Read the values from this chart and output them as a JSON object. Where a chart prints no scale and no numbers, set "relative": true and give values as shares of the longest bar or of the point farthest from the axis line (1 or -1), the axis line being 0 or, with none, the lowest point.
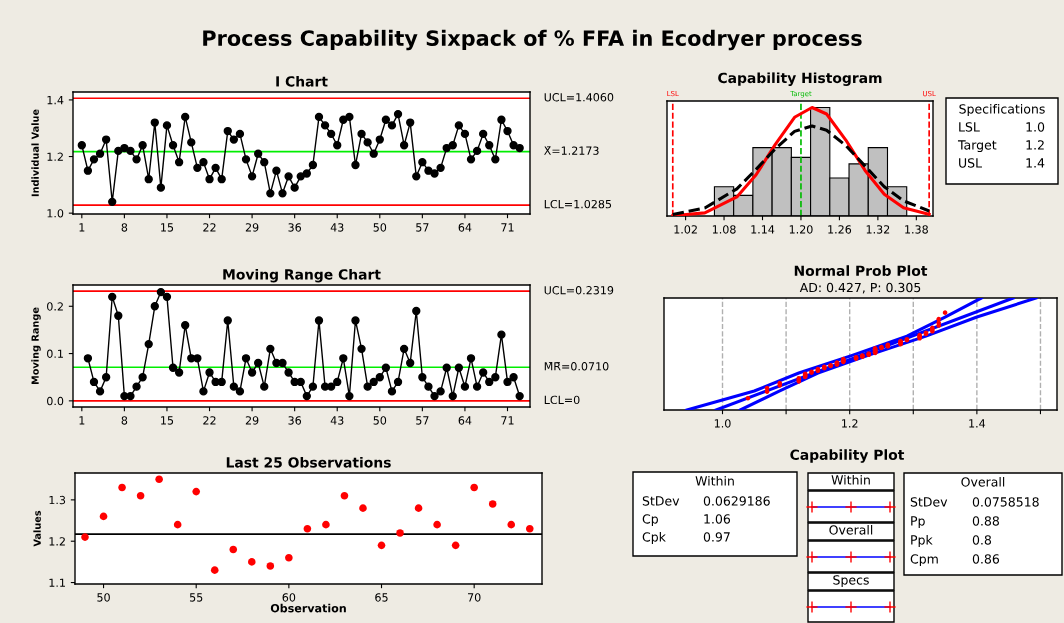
{
  "chart_data": [
    {
      "type": "other",
      "title": "Process Capability Sixpack of % FFA in Ecodryer process"
    },
    {
      "type": "line",
      "title": "I Chart",
      "ylabel": "Individual Value",
      "marker": "circle",
      "grid": false,
      "x": [
        1,
        2,
        3,
        4,
        5,
        6,
        7,
        8,
        9,
        10,
        11,
        12,
        13,
        14,
        15,
        16,
        17,
        18,
        19,
        20,
        21,
        22,
        23,
        24,
        25,
        26,
        27,
        28,
        29,
        30,
        31,
        32,
        33,
        34,
        35,
        36,
        37,
        38,
        39,
        40,
        41,
        42,
        43,
        44,
        45,
        46,
        47,
        48,
        49,
        50,
        51,
        52,
        53,
        54,
        55,
        56,
        57,
        58,
        59,
        60,
        61,
        62,
        63,
        64,
        65,
        66,
        67,
        68,
        69,
        70,
        71,
        72,
        73
      ],
      "series": [
        {
          "color": "#000000",
          "values": [
            1.24,
            1.15,
            1.19,
            1.21,
            1.26,
            1.04,
            1.22,
            1.23,
            1.22,
            1.19,
            1.24,
            1.12,
            1.32,
            1.09,
            1.31,
            1.24,
            1.18,
            1.34,
            1.25,
            1.16,
            1.18,
            1.12,
            1.16,
            1.12,
            1.29,
            1.26,
            1.28,
            1.19,
            1.13,
            1.21,
            1.18,
            1.07,
            1.15,
            1.07,
            1.13,
            1.09,
            1.13,
            1.14,
            1.17,
            1.34,
            1.31,
            1.28,
            1.24,
            1.33,
            1.34,
            1.17,
            1.28,
            1.25,
            1.21,
            1.26,
            1.33,
            1.31,
            1.35,
            1.24,
            1.32,
            1.13,
            1.18,
            1.15,
            1.14,
            1.16,
            1.23,
            1.24,
            1.31,
            1.28,
            1.19,
            1.22,
            1.28,
            1.24,
            1.19,
            1.33,
            1.29,
            1.24,
            1.23
          ]
        }
      ],
      "xlim": [
        -0.45,
        74.7
      ],
      "xticks": [
        1,
        8,
        15,
        22,
        29,
        36,
        43,
        50,
        57,
        64,
        71
      ],
      "ylim": [
        0.997,
        1.428
      ],
      "yticks": [
        {
          "value": 1.0,
          "label": "1.0"
        },
        1.2,
        1.4
      ],
      "ref_lines": [
        {
          "axis": "y",
          "value": 1.406,
          "label": "UCL=1.4060",
          "color": "#ff0000"
        },
        {
          "axis": "y",
          "value": 1.2173,
          "label": "X̄=1.2173",
          "color": "#00ee00"
        },
        {
          "axis": "y",
          "value": 1.0285,
          "label": "LCL=1.0285",
          "color": "#ff0000"
        }
      ]
    },
    {
      "type": "line",
      "title": "Moving Range Chart",
      "ylabel": "Moving Range",
      "marker": "circle",
      "grid": false,
      "x": [
        2,
        3,
        4,
        5,
        6,
        7,
        8,
        9,
        10,
        11,
        12,
        13,
        14,
        15,
        16,
        17,
        18,
        19,
        20,
        21,
        22,
        23,
        24,
        25,
        26,
        27,
        28,
        29,
        30,
        31,
        32,
        33,
        34,
        35,
        36,
        37,
        38,
        39,
        40,
        41,
        42,
        43,
        44,
        45,
        46,
        47,
        48,
        49,
        50,
        51,
        52,
        53,
        54,
        55,
        56,
        57,
        58,
        59,
        60,
        61,
        62,
        63,
        64,
        65,
        66,
        67,
        68,
        69,
        70,
        71,
        72,
        73
      ],
      "series": [
        {
          "color": "#000000",
          "values": [
            0.09,
            0.04,
            0.02,
            0.05,
            0.22,
            0.18,
            0.01,
            0.01,
            0.03,
            0.05,
            0.12,
            0.2,
            0.23,
            0.22,
            0.07,
            0.06,
            0.16,
            0.09,
            0.09,
            0.02,
            0.06,
            0.04,
            0.04,
            0.17,
            0.03,
            0.02,
            0.09,
            0.06,
            0.08,
            0.03,
            0.11,
            0.08,
            0.08,
            0.06,
            0.04,
            0.04,
            0.01,
            0.03,
            0.17,
            0.03,
            0.03,
            0.04,
            0.09,
            0.01,
            0.17,
            0.11,
            0.03,
            0.04,
            0.05,
            0.07,
            0.02,
            0.04,
            0.11,
            0.08,
            0.19,
            0.05,
            0.03,
            0.01,
            0.02,
            0.07,
            0.01,
            0.07,
            0.03,
            0.09,
            0.03,
            0.06,
            0.04,
            0.05,
            0.14,
            0.04,
            0.05,
            0.01
          ]
        }
      ],
      "xlim": [
        -0.45,
        74.7
      ],
      "xticks": [
        1,
        8,
        15,
        22,
        29,
        36,
        43,
        50,
        57,
        64,
        71
      ],
      "ylim": [
        -0.013,
        0.245
      ],
      "yticks": [
        {
          "value": 0,
          "label": "0.0"
        },
        0.1,
        0.2
      ],
      "ref_lines": [
        {
          "axis": "y",
          "value": 0.2319,
          "label": "UCL=0.2319",
          "color": "#ff0000"
        },
        {
          "axis": "y",
          "value": 0.071,
          "label": "M̄R̄=0.0710",
          "color": "#00ee00"
        },
        {
          "axis": "y",
          "value": 0,
          "label": "LCL=0",
          "color": "#ff0000"
        }
      ]
    },
    {
      "type": "histogram",
      "title": "Capability Histogram",
      "relative": true,
      "tick_labels": "x",
      "grid": false,
      "bins": [
        1.065,
        1.095,
        1.125,
        1.155,
        1.185,
        1.215,
        1.245,
        1.275,
        1.305,
        1.335,
        1.365
      ],
      "values": [
        0.27,
        0.19,
        0.63,
        0.63,
        0.54,
        1,
        0.35,
        0.48,
        0.63,
        0.27
      ],
      "color": "#c0c0c0",
      "series": [
        {
          "type": "line",
          "color": "#ff0000",
          "line_style": "solid",
          "x": [
            1.0,
            1.05,
            1.1,
            1.13,
            1.16,
            1.19,
            1.2173,
            1.24,
            1.27,
            1.3,
            1.33,
            1.36,
            1.4
          ],
          "values": [
            0.003,
            0.029,
            0.176,
            0.38,
            0.66,
            0.91,
            1,
            0.94,
            0.7,
            0.42,
            0.2,
            0.076,
            0.015
          ]
        },
        {
          "type": "line",
          "color": "#000000",
          "line_style": "dashed",
          "x": [
            1.0,
            1.05,
            1.1,
            1.13,
            1.16,
            1.19,
            1.2173,
            1.24,
            1.27,
            1.3,
            1.33,
            1.36,
            1.4
          ],
          "values": [
            0.014,
            0.074,
            0.25,
            0.43,
            0.62,
            0.78,
            0.83,
            0.79,
            0.65,
            0.46,
            0.27,
            0.14,
            0.046
          ]
        }
      ],
      "xlim": [
        0.991,
        1.406
      ],
      "xticks": [
        1.02,
        1.08,
        1.14,
        {
          "value": 1.2,
          "label": "1.20"
        },
        1.26,
        1.32,
        1.38
      ],
      "ref_lines": [
        {
          "axis": "x",
          "value": 1.0,
          "label": "LSL",
          "color": "#ff0000",
          "line_style": "dashed"
        },
        {
          "axis": "x",
          "value": 1.2,
          "label": "Target",
          "color": "#00bb00",
          "line_style": "dashed"
        },
        {
          "axis": "x",
          "value": 1.4,
          "label": "USL",
          "color": "#ff0000",
          "line_style": "dashed"
        }
      ],
      "annotations": [
        "Specifications",
        "LSL",
        "1.0",
        "Target",
        "1.2",
        "USL",
        "1.4"
      ]
    },
    {
      "type": "scatter",
      "title": "Normal Prob Plot",
      "subtitle": "AD: 0.427, P: 0.305",
      "relative": true,
      "tick_labels": "x",
      "grid": "x",
      "series": [
        {
          "type": "scatter",
          "color": "#ff0000",
          "marker": "circle",
          "x": [
            1.04,
            1.07,
            1.07,
            1.09,
            1.09,
            1.12,
            1.12,
            1.12,
            1.13,
            1.13,
            1.13,
            1.13,
            1.14,
            1.14,
            1.15,
            1.15,
            1.15,
            1.16,
            1.16,
            1.16,
            1.17,
            1.17,
            1.18,
            1.18,
            1.18,
            1.18,
            1.19,
            1.19,
            1.19,
            1.19,
            1.19,
            1.21,
            1.21,
            1.21,
            1.22,
            1.22,
            1.22,
            1.23,
            1.23,
            1.23,
            1.24,
            1.24,
            1.24,
            1.24,
            1.24,
            1.24,
            1.24,
            1.24,
            1.25,
            1.25,
            1.26,
            1.26,
            1.26,
            1.28,
            1.28,
            1.28,
            1.28,
            1.28,
            1.29,
            1.29,
            1.31,
            1.31,
            1.31,
            1.31,
            1.32,
            1.32,
            1.33,
            1.33,
            1.33,
            1.34,
            1.34,
            1.34,
            1.35
          ],
          "values": [
            0.105,
            0.163,
            0.196,
            0.22,
            0.24,
            0.256,
            0.271,
            0.284,
            0.295,
            0.305,
            0.315,
            0.324,
            0.334,
            0.342,
            0.35,
            0.359,
            0.365,
            0.373,
            0.38,
            0.386,
            0.393,
            0.399,
            0.406,
            0.412,
            0.419,
            0.424,
            0.43,
            0.437,
            0.441,
            0.448,
            0.454,
            0.459,
            0.465,
            0.471,
            0.476,
            0.481,
            0.487,
            0.493,
            0.498,
            0.503,
            0.509,
            0.515,
            0.52,
            0.526,
            0.533,
            0.537,
            0.544,
            0.55,
            0.555,
            0.562,
            0.568,
            0.575,
            0.581,
            0.588,
            0.594,
            0.601,
            0.609,
            0.615,
            0.624,
            0.632,
            0.64,
            0.65,
            0.659,
            0.669,
            0.679,
            0.69,
            0.703,
            0.718,
            0.734,
            0.754,
            0.778,
            0.811,
            0.869
          ]
        },
        {
          "type": "line",
          "color": "#0000ff",
          "x": [
            0.99,
            1.457
          ],
          "values": [
            0,
            1
          ]
        },
        {
          "type": "line",
          "color": "#0000ff",
          "x": [
            0.944,
            1.05,
            1.12,
            1.205,
            1.29,
            1.35,
            1.407
          ],
          "values": [
            0,
            0.17,
            0.33,
            0.49,
            0.66,
            0.83,
            1
          ]
        },
        {
          "type": "line",
          "color": "#0000ff",
          "x": [
            1.028,
            1.09,
            1.15,
            1.23,
            1.32,
            1.4,
            1.493
          ],
          "values": [
            0,
            0.17,
            0.33,
            0.49,
            0.66,
            0.83,
            1
          ]
        }
      ],
      "xlim": [
        0.908,
        1.526
      ],
      "xticks": [
        {
          "value": 1.0,
          "label": "1.0"
        },
        {
          "value": 1.1,
          "label": null
        },
        1.2,
        {
          "value": 1.3,
          "label": null
        },
        1.4,
        {
          "value": 1.5,
          "label": null
        }
      ]
    },
    {
      "type": "scatter",
      "title": "Last 25 Observations",
      "xlabel": "Observation",
      "ylabel": "Values",
      "marker": "circle",
      "grid": false,
      "x": [
        49,
        50,
        51,
        52,
        53,
        54,
        55,
        56,
        57,
        58,
        59,
        60,
        61,
        62,
        63,
        64,
        65,
        66,
        67,
        68,
        69,
        70,
        71,
        72,
        73
      ],
      "series": [
        {
          "color": "#ff0000",
          "values": [
            1.21,
            1.26,
            1.33,
            1.31,
            1.35,
            1.24,
            1.32,
            1.13,
            1.18,
            1.15,
            1.14,
            1.16,
            1.23,
            1.24,
            1.31,
            1.28,
            1.19,
            1.22,
            1.28,
            1.24,
            1.19,
            1.33,
            1.29,
            1.24,
            1.23
          ]
        }
      ],
      "xlim": [
        48.46,
        73.66
      ],
      "xticks": [
        50,
        55,
        60,
        65,
        70
      ],
      "ylim": [
        1.0965,
        1.365
      ],
      "yticks": [
        1.1,
        1.2,
        1.3
      ],
      "ref_lines": [
        {
          "axis": "y",
          "value": 1.2173,
          "color": "#000000"
        }
      ]
    },
    {
      "type": "other",
      "title": "Capability Plot",
      "annotations": [
        "Within",
        "StDev",
        "0.0629186",
        "Cp",
        "1.06",
        "Cpk",
        "0.97",
        "Within",
        "Overall",
        "Specs",
        "Overall",
        "StDev",
        "0.0758518",
        "Pp",
        "0.88",
        "Ppk",
        "0.8",
        "Cpm",
        "0.86"
      ]
    }
  ]
}
